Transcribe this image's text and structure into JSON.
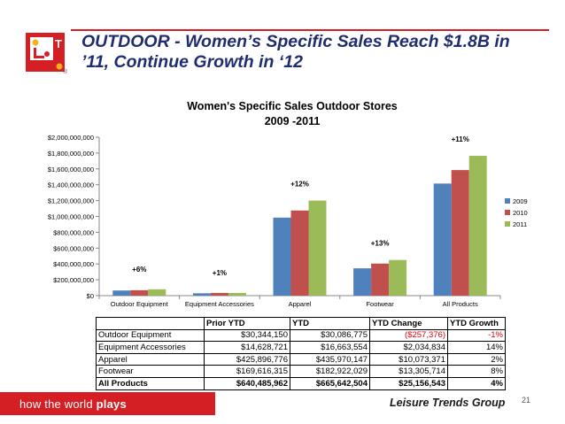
{
  "header": {
    "title_line1": "OUTDOOR  - Women’s Specific Sales Reach $1.8B in",
    "title_line2": "’11, Continue Growth in ‘12",
    "logo_letter": "T",
    "reg_mark": "®"
  },
  "colors": {
    "accent": "#d41f24",
    "title": "#1f2d6e",
    "series_2009": "#4f81bd",
    "series_2010": "#c0504d",
    "series_2011": "#9bbb59"
  },
  "chart_data": {
    "type": "bar",
    "title_line1": "Women's Specific Sales Outdoor Stores",
    "title_line2": "2009 -2011",
    "categories": [
      "Outdoor Equipment",
      "Equipment Accessories",
      "Apparel",
      "Footwear",
      "All Products"
    ],
    "series": [
      {
        "name": "2009",
        "values": [
          65000000,
          30000000,
          985000000,
          345000000,
          1415000000
        ]
      },
      {
        "name": "2010",
        "values": [
          69000000,
          34000000,
          1075000000,
          405000000,
          1585000000
        ]
      },
      {
        "name": "2011",
        "values": [
          80000000,
          34000000,
          1200000000,
          450000000,
          1765000000
        ]
      }
    ],
    "annotations": [
      "+6%",
      "+1%",
      "+12%",
      "+13%",
      "+11%"
    ],
    "ylim": [
      0,
      2000000000
    ],
    "yticks": [
      0,
      200000000,
      400000000,
      600000000,
      800000000,
      1000000000,
      1200000000,
      1400000000,
      1600000000,
      1800000000,
      2000000000
    ],
    "ytick_labels": [
      "$0",
      "$200,000,000",
      "$400,000,000",
      "$600,000,000",
      "$800,000,000",
      "$1,000,000,000",
      "$1,200,000,000",
      "$1,400,000,000",
      "$1,600,000,000",
      "$1,800,000,000",
      "$2,000,000,000"
    ],
    "legend_position": "right",
    "grid": false
  },
  "table": {
    "headers": [
      "",
      "Prior YTD",
      "YTD",
      "YTD Change",
      "YTD Growth"
    ],
    "rows": [
      [
        "Outdoor Equipment",
        "$30,344,150",
        "$30,086,775",
        "($257,376)",
        "-1%"
      ],
      [
        "Equipment Accessories",
        "$14,628,721",
        "$16,663,554",
        "$2,034,834",
        "14%"
      ],
      [
        "Apparel",
        "$425,896,776",
        "$435,970,147",
        "$10,073,371",
        "2%"
      ],
      [
        "Footwear",
        "$169,616,315",
        "$182,922,029",
        "$13,305,714",
        "8%"
      ],
      [
        "All Products",
        "$640,485,962",
        "$665,642,504",
        "$25,156,543",
        "4%"
      ]
    ]
  },
  "footer": {
    "tagline_prefix": "how the world ",
    "tagline_bold": "plays",
    "company": "Leisure Trends Group",
    "page_number": "21"
  }
}
